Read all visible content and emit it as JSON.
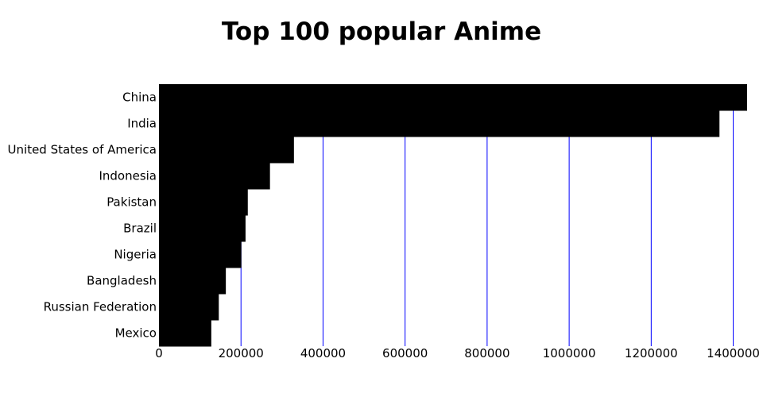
{
  "chart_data": {
    "type": "bar",
    "orientation": "horizontal",
    "title": "Top 100 popular Anime",
    "xlabel": "",
    "ylabel": "",
    "categories": [
      "China",
      "India",
      "United States of America",
      "Indonesia",
      "Pakistan",
      "Brazil",
      "Nigeria",
      "Bangladesh",
      "Russian Federation",
      "Mexico"
    ],
    "values": [
      1433784,
      1366418,
      329065,
      270626,
      216565,
      211050,
      200964,
      163046,
      145872,
      127576
    ],
    "xlim": [
      0,
      1433784
    ],
    "xticks": [
      0,
      200000,
      400000,
      600000,
      800000,
      1000000,
      1200000,
      1400000
    ],
    "grid": true,
    "legend": "none",
    "colors": {
      "bar": "#000000",
      "grid": "#0000ff",
      "text": "#000000"
    }
  }
}
